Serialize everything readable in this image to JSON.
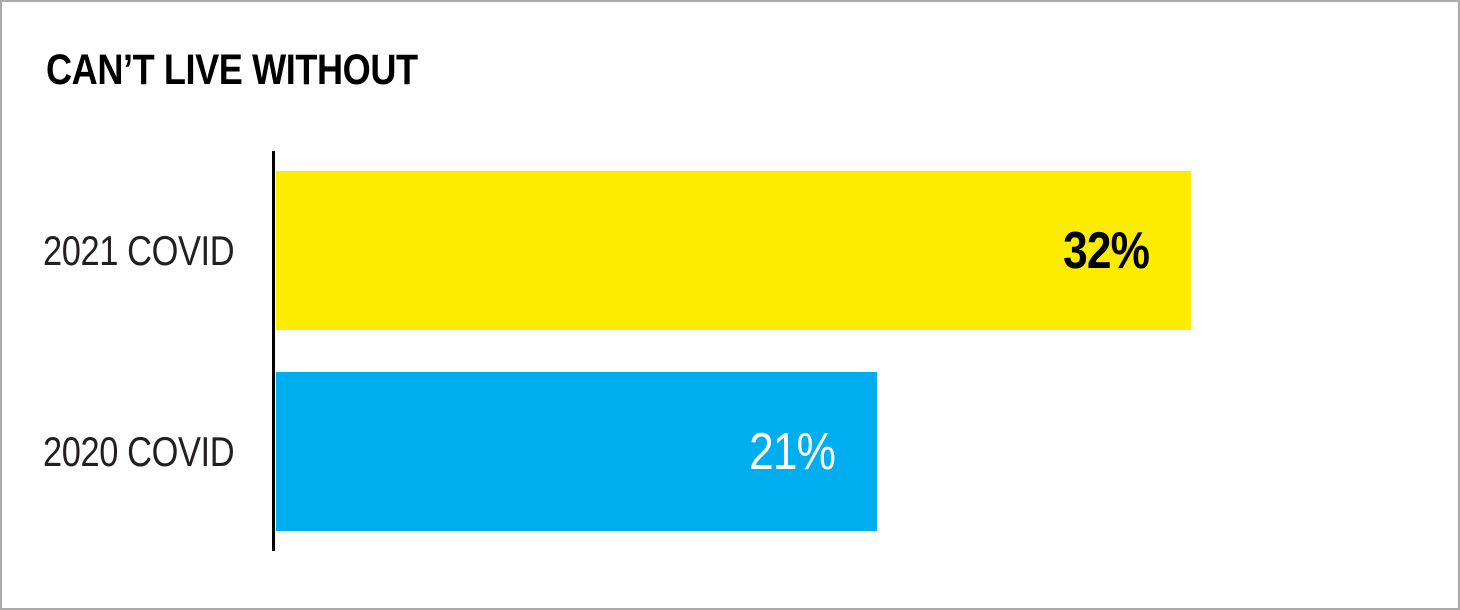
{
  "title": "CAN’T LIVE WITHOUT",
  "chart_data": {
    "type": "bar",
    "orientation": "horizontal",
    "title": "CAN’T LIVE WITHOUT",
    "categories": [
      "2021 COVID",
      "2020 COVID"
    ],
    "values": [
      32,
      21
    ],
    "value_labels": [
      "32%",
      "21%"
    ],
    "bar_colors": [
      "#fcec00",
      "#00aeef"
    ],
    "value_label_colors": [
      "#000000",
      "#ffffff"
    ],
    "value_label_weights": [
      "bold",
      "normal"
    ],
    "xlabel": "",
    "ylabel": "",
    "xlim": [
      0,
      40
    ],
    "grid": false,
    "legend": false,
    "axis_line_color": "#000000",
    "background_color": "#ffffff",
    "category_label_color": "#231f20"
  }
}
